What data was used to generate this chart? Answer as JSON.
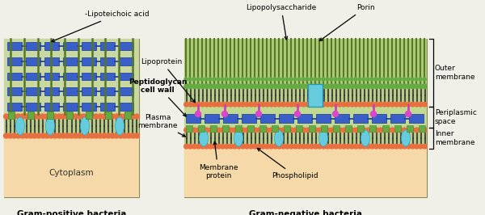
{
  "bg_color": "#f0f0e8",
  "gram_pos_bg": "#c8d8a0",
  "gram_neg_bg": "#c8d8a0",
  "cytoplasm_color": "#f5d9a8",
  "peptido_color": "#b8cc88",
  "blue_rect_color": "#3a5fc8",
  "orange_head_color": "#e87040",
  "cyan_protein_color": "#66ccdd",
  "green_protein_color": "#66aa44",
  "magenta_protein_color": "#cc44aa",
  "gram_pos_title": "Gram-positive bacteria",
  "gram_neg_title": "Gram-negative bacteria",
  "label_lipoteichoic": "-Lipoteichoic acid",
  "label_lipoprotein": "Lipoprotein",
  "label_peptidoglycan": "Peptidoglycan\ncell wall",
  "label_plasma": "Plasma\nmembrane",
  "label_lipopolysaccharide": "Lipopolysaccharide",
  "label_porin": "Porin",
  "label_outer": "Outer\nmembrane",
  "label_periplasmic": "Periplasmic\nspace",
  "label_inner": "Inner\nmembrane",
  "label_membrane_protein": "Membrane\nprotein",
  "label_phospholipid": "Phospholipid",
  "label_cytoplasm": "Cytoplasm",
  "figsize": [
    6.0,
    2.66
  ],
  "dpi": 100
}
